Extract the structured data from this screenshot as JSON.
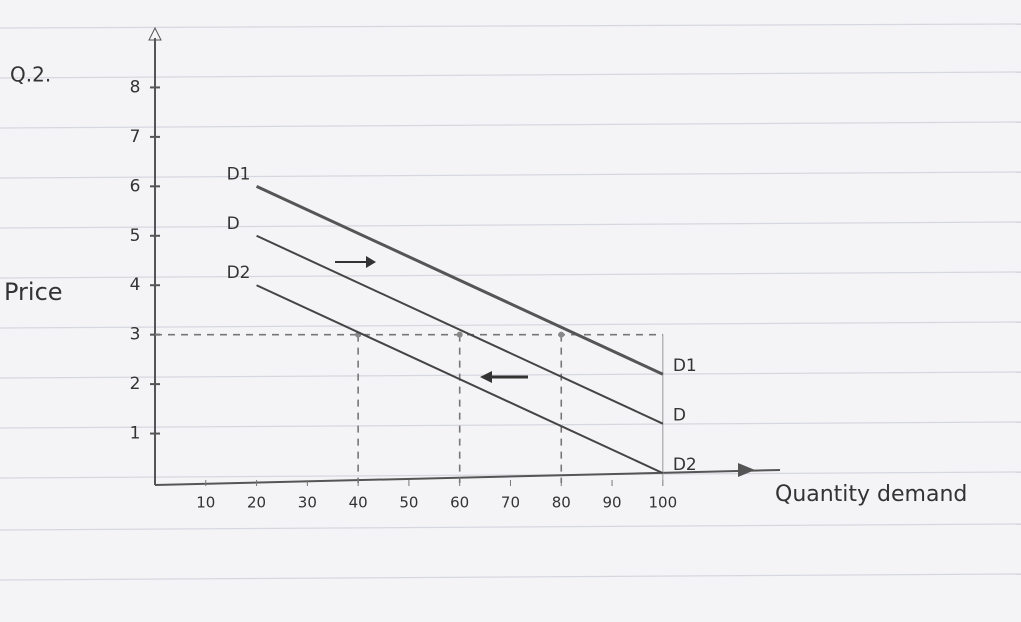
{
  "chart_data": {
    "type": "line",
    "label": "Q.2.",
    "x_label": "Quantity demand",
    "y_label": "Price",
    "x": [
      20,
      100
    ],
    "series": [
      {
        "name": "D1",
        "color": "#555555",
        "values": [
          6,
          2.2
        ]
      },
      {
        "name": "D",
        "color": "#444444",
        "values": [
          5,
          1.2
        ]
      },
      {
        "name": "D2",
        "color": "#444444",
        "values": [
          4,
          0.2
        ]
      }
    ],
    "xlim": [
      0,
      115
    ],
    "ylim": [
      0,
      9
    ],
    "xticks": [
      10,
      20,
      30,
      40,
      50,
      60,
      70,
      80,
      90,
      100
    ],
    "yticks": [
      1,
      2,
      3,
      4,
      5,
      6,
      7,
      8
    ],
    "guide_y": 3,
    "guide_x": [
      40,
      60,
      80
    ]
  }
}
